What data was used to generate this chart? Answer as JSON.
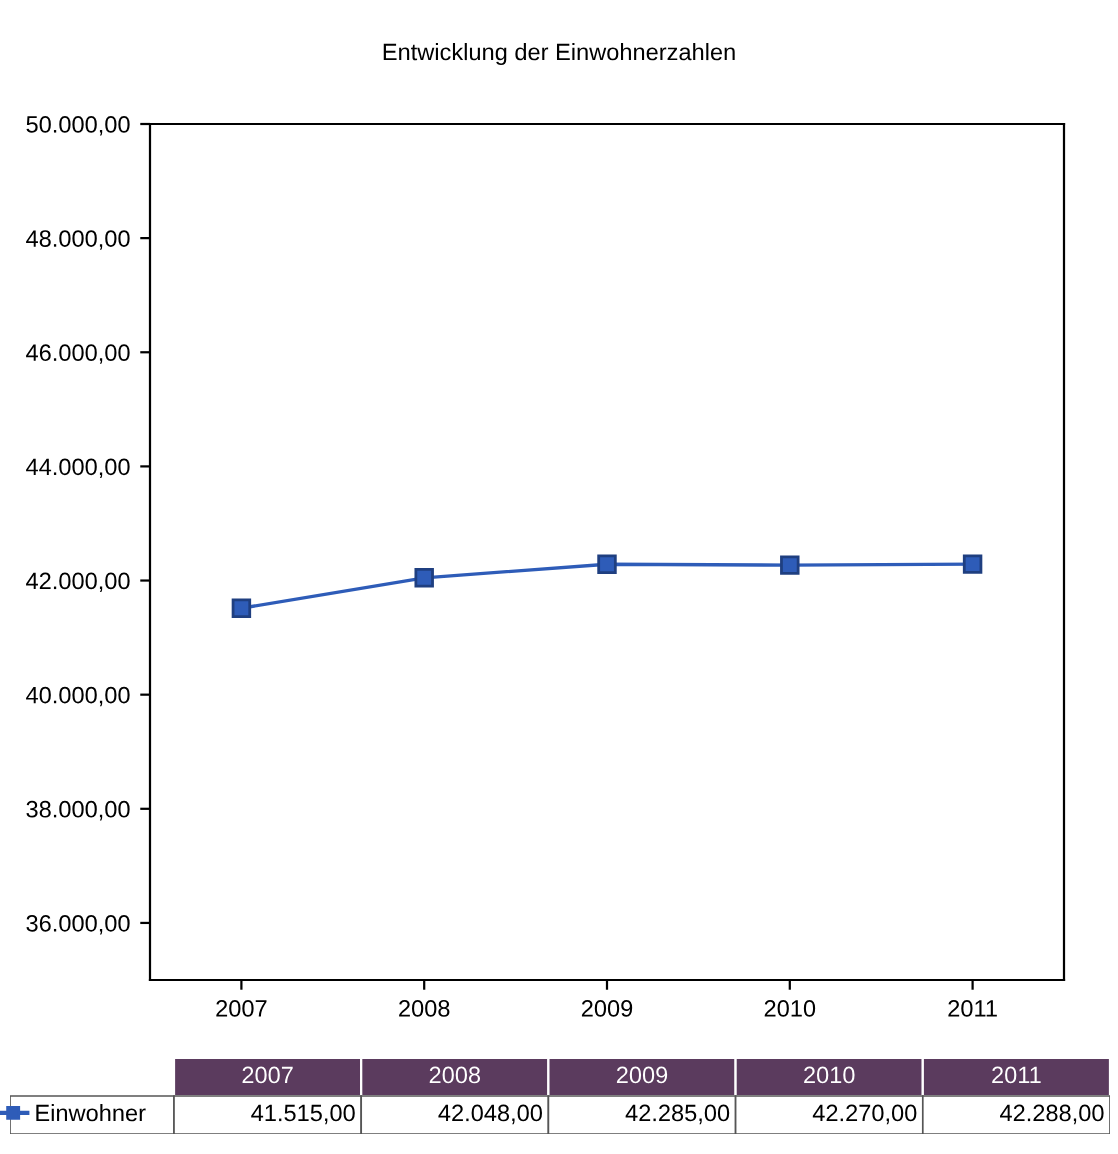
{
  "chart_data": {
    "type": "line",
    "title": "Entwicklung der Einwohnerzahlen",
    "categories": [
      "2007",
      "2008",
      "2009",
      "2010",
      "2011"
    ],
    "series": [
      {
        "name": "Einwohner",
        "color": "#2e5cb8",
        "values": [
          41515,
          42048,
          42285,
          42270,
          42288
        ],
        "value_labels": [
          "41.515,00",
          "42.048,00",
          "42.285,00",
          "42.270,00",
          "42.288,00"
        ]
      }
    ],
    "ylim": [
      35000,
      50000
    ],
    "yticks": [
      {
        "value": 36000,
        "label": "36.000,00"
      },
      {
        "value": 38000,
        "label": "38.000,00"
      },
      {
        "value": 40000,
        "label": "40.000,00"
      },
      {
        "value": 42000,
        "label": "42.000,00"
      },
      {
        "value": 44000,
        "label": "44.000,00"
      },
      {
        "value": 46000,
        "label": "46.000,00"
      },
      {
        "value": 48000,
        "label": "48.000,00"
      },
      {
        "value": 50000,
        "label": "50.000,00"
      }
    ],
    "grid": false,
    "legend": "bottom",
    "marker": "square",
    "line_style": "solid"
  }
}
